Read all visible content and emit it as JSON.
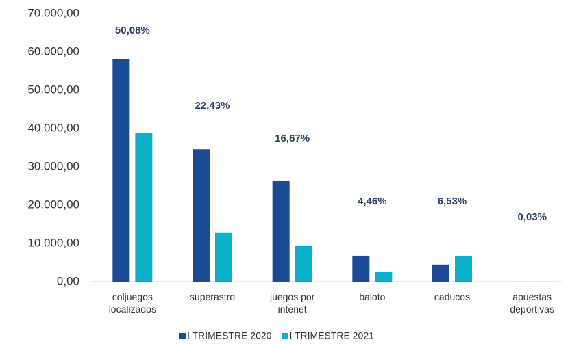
{
  "chart_data": {
    "type": "bar",
    "categories": [
      "coljuegos localizados",
      "superastro",
      "juegos por intenet",
      "baloto",
      "caducos",
      "apuestas deportivas"
    ],
    "series": [
      {
        "name": "I TRIMESTRE 2020",
        "color": "#1b4b97",
        "values": [
          58200,
          34600,
          26250,
          6800,
          4500,
          10
        ]
      },
      {
        "name": "I TRIMESTRE 2021",
        "color": "#0bb0c9",
        "values": [
          38900,
          12900,
          9300,
          2500,
          6800,
          5
        ]
      }
    ],
    "annotations": [
      "50,08%",
      "22,43%",
      "16,67%",
      "4,46%",
      "6,53%",
      "0,03%"
    ],
    "ylim": [
      0,
      70000
    ],
    "yticks": [
      {
        "value": 0,
        "label": "0,00"
      },
      {
        "value": 10000,
        "label": "10.000,00"
      },
      {
        "value": 20000,
        "label": "20.000,00"
      },
      {
        "value": 30000,
        "label": "30.000,00"
      },
      {
        "value": 40000,
        "label": "40.000,00"
      },
      {
        "value": 50000,
        "label": "50.000,00"
      },
      {
        "value": 60000,
        "label": "60.000,00"
      },
      {
        "value": 70000,
        "label": "70.000,00"
      }
    ],
    "legend": "bottom"
  }
}
